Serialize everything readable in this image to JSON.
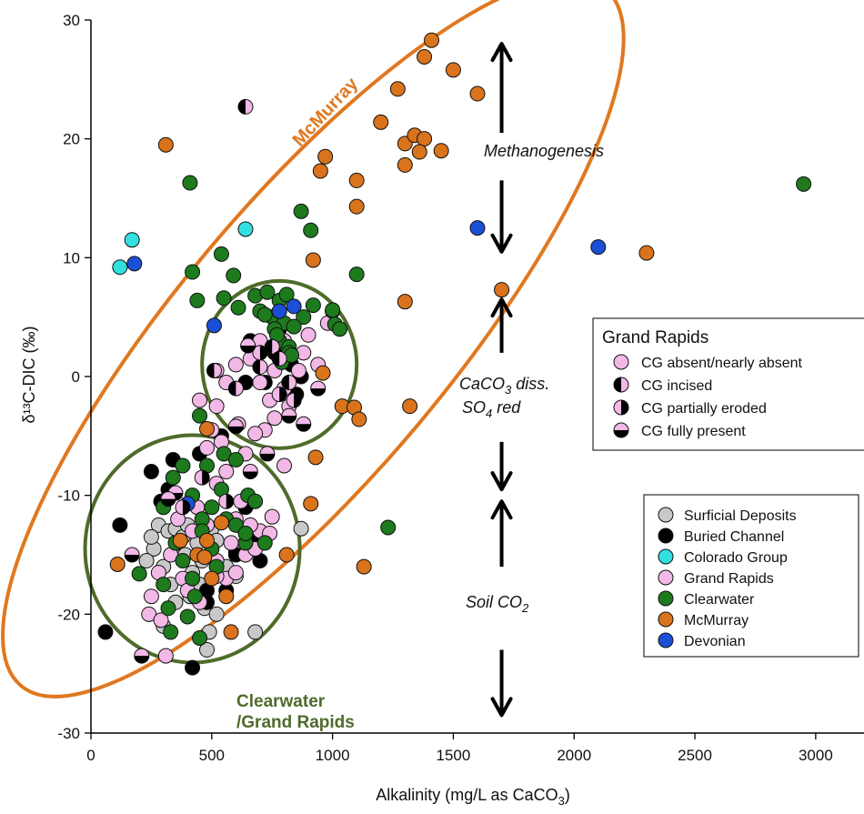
{
  "chart_data": {
    "type": "scatter",
    "xlabel": "Alkalinity  (mg/L as CaCO",
    "xlabel_sub": "3",
    "xlabel_end": ")",
    "ylabel": "δ¹³C-DIC (‰)",
    "xlim": [
      0,
      3200
    ],
    "ylim": [
      -30,
      30
    ],
    "xticks": [
      0,
      500,
      1000,
      1500,
      2000,
      2500,
      3000
    ],
    "yticks": [
      -30,
      -20,
      -10,
      0,
      10,
      20,
      30
    ],
    "grid": false,
    "colors": {
      "surficial": "#c8c8c8",
      "buried": "#000000",
      "colorado": "#33e0e0",
      "grandrapids": "#f2b8e6",
      "clearwater": "#1d7a1d",
      "mcmurray": "#d9731c",
      "devonian": "#1a4fd6",
      "mcmurray_ellipse": "#e07820",
      "clearwater_ellipse": "#4f6b2a"
    },
    "legend_grand_rapids": {
      "title": "Grand Rapids",
      "placement": "right",
      "entries": [
        {
          "label": "CG absent/nearly absent",
          "marker": "full"
        },
        {
          "label": "CG incised",
          "marker": "left-half"
        },
        {
          "label": "CG partially eroded",
          "marker": "right-half"
        },
        {
          "label": "CG fully present",
          "marker": "bottom-half"
        }
      ]
    },
    "legend_units": {
      "placement": "bottom-right",
      "entries": [
        {
          "label": "Surficial Deposits",
          "key": "surficial"
        },
        {
          "label": "Buried Channel",
          "key": "buried"
        },
        {
          "label": "Colorado Group",
          "key": "colorado"
        },
        {
          "label": "Grand Rapids",
          "key": "grandrapids"
        },
        {
          "label": "Clearwater",
          "key": "clearwater"
        },
        {
          "label": "McMurray",
          "key": "mcmurray"
        },
        {
          "label": "Devonian",
          "key": "devonian"
        }
      ]
    },
    "annotations": {
      "mcmurray_label": "McMurray",
      "clearwater_label_1": "Clearwater",
      "clearwater_label_2": "/Grand Rapids",
      "methanogenesis": "Methanogenesis",
      "caco3_line1_a": "CaCO",
      "caco3_line1_sub": "3",
      "caco3_line1_b": " diss.",
      "so4_a": "SO",
      "so4_sub": "4",
      "so4_b": " red",
      "soil_a": "Soil CO",
      "soil_sub": "2"
    },
    "series": [
      {
        "name": "Surficial Deposits",
        "key": "surficial",
        "marker": "full",
        "points": [
          [
            280,
            -12.5
          ],
          [
            320,
            -13
          ],
          [
            360,
            -14
          ],
          [
            390,
            -15
          ],
          [
            420,
            -16.5
          ],
          [
            350,
            -12.8
          ],
          [
            300,
            -16
          ],
          [
            260,
            -14.5
          ],
          [
            380,
            -13.5
          ],
          [
            440,
            -14
          ],
          [
            460,
            -15.5
          ],
          [
            500,
            -12.8
          ],
          [
            520,
            -13.8
          ],
          [
            560,
            -16
          ],
          [
            600,
            -14.8
          ],
          [
            230,
            -15.5
          ],
          [
            330,
            -17.5
          ],
          [
            410,
            -18.5
          ],
          [
            470,
            -19.5
          ],
          [
            490,
            -21.5
          ],
          [
            520,
            -20
          ],
          [
            480,
            -23
          ],
          [
            680,
            -21.5
          ],
          [
            300,
            -21
          ],
          [
            870,
            -12.8
          ],
          [
            600,
            -16.8
          ],
          [
            350,
            -19
          ],
          [
            400,
            -12.5
          ],
          [
            450,
            -17.5
          ],
          [
            250,
            -13.5
          ]
        ]
      },
      {
        "name": "Buried Channel",
        "key": "buried",
        "marker": "full",
        "points": [
          [
            60,
            -21.5
          ],
          [
            120,
            -12.5
          ],
          [
            290,
            -10.5
          ],
          [
            320,
            -9.5
          ],
          [
            420,
            -24.5
          ],
          [
            250,
            -8
          ],
          [
            340,
            -7
          ],
          [
            640,
            -11
          ],
          [
            680,
            -13.5
          ],
          [
            600,
            -15
          ],
          [
            480,
            -18
          ],
          [
            700,
            -15.5
          ],
          [
            660,
            3
          ],
          [
            760,
            2
          ],
          [
            850,
            -1.5
          ],
          [
            830,
            1
          ],
          [
            720,
            -0.5
          ],
          [
            780,
            4
          ],
          [
            870,
            0
          ],
          [
            640,
            -0.5
          ],
          [
            540,
            -5
          ],
          [
            450,
            -6.5
          ],
          [
            480,
            -19
          ],
          [
            560,
            -18
          ]
        ]
      },
      {
        "name": "Colorado Group",
        "key": "colorado",
        "marker": "full",
        "points": [
          [
            120,
            9.2
          ],
          [
            170,
            11.5
          ],
          [
            640,
            12.4
          ]
        ]
      },
      {
        "name": "Grand Rapids",
        "key": "grandrapids",
        "marker": "full",
        "points": [
          [
            310,
            -23.5
          ],
          [
            240,
            -20
          ],
          [
            290,
            -20.5
          ],
          [
            380,
            -17
          ],
          [
            420,
            -13
          ],
          [
            520,
            -15.5
          ],
          [
            560,
            -17
          ],
          [
            600,
            -16.5
          ],
          [
            640,
            -15
          ],
          [
            680,
            -14.5
          ],
          [
            700,
            -13
          ],
          [
            750,
            -11.8
          ],
          [
            800,
            -7.5
          ],
          [
            620,
            -10.5
          ],
          [
            560,
            -8
          ],
          [
            500,
            -4.5
          ],
          [
            450,
            -2
          ],
          [
            520,
            -2.5
          ],
          [
            560,
            -0.5
          ],
          [
            600,
            1
          ],
          [
            660,
            1.5
          ],
          [
            700,
            -0.5
          ],
          [
            740,
            -2
          ],
          [
            760,
            0.5
          ],
          [
            800,
            3
          ],
          [
            880,
            2
          ],
          [
            940,
            1
          ],
          [
            980,
            4.5
          ],
          [
            1000,
            5.5
          ],
          [
            900,
            3.5
          ],
          [
            860,
            0.5
          ],
          [
            800,
            -1
          ],
          [
            720,
            -4.5
          ],
          [
            680,
            -4.8
          ],
          [
            610,
            -4
          ],
          [
            640,
            -6.5
          ],
          [
            540,
            -5.5
          ],
          [
            480,
            -6
          ],
          [
            520,
            -9
          ],
          [
            440,
            -11
          ],
          [
            360,
            -12
          ],
          [
            330,
            -15
          ],
          [
            280,
            -16.5
          ],
          [
            250,
            -18.5
          ],
          [
            400,
            -18
          ],
          [
            450,
            -19
          ],
          [
            520,
            -16.8
          ],
          [
            580,
            -14
          ],
          [
            480,
            -12.5
          ],
          [
            600,
            -12
          ],
          [
            660,
            -12.5
          ],
          [
            740,
            -13.2
          ],
          [
            520,
            0.5
          ],
          [
            700,
            3
          ],
          [
            760,
            -3.5
          ],
          [
            820,
            -2.5
          ]
        ]
      },
      {
        "name": "Clearwater",
        "key": "clearwater",
        "marker": "full",
        "points": [
          [
            410,
            16.3
          ],
          [
            540,
            10.3
          ],
          [
            590,
            8.5
          ],
          [
            420,
            8.8
          ],
          [
            440,
            6.4
          ],
          [
            550,
            6.6
          ],
          [
            610,
            5.8
          ],
          [
            680,
            6.8
          ],
          [
            730,
            7.1
          ],
          [
            780,
            6.4
          ],
          [
            810,
            6.9
          ],
          [
            700,
            5.5
          ],
          [
            750,
            5
          ],
          [
            800,
            4.5
          ],
          [
            780,
            3
          ],
          [
            820,
            2.5
          ],
          [
            760,
            4
          ],
          [
            870,
            13.9
          ],
          [
            910,
            12.3
          ],
          [
            1100,
            8.6
          ],
          [
            1000,
            5.6
          ],
          [
            1010,
            4.4
          ],
          [
            1030,
            4
          ],
          [
            820,
            2
          ],
          [
            770,
            3.5
          ],
          [
            790,
            1.2
          ],
          [
            830,
            1.8
          ],
          [
            720,
            5.2
          ],
          [
            920,
            6
          ],
          [
            880,
            5
          ],
          [
            840,
            4.2
          ],
          [
            450,
            -3.3
          ],
          [
            480,
            -7.5
          ],
          [
            550,
            -6.5
          ],
          [
            600,
            -7
          ],
          [
            650,
            -10
          ],
          [
            680,
            -10.5
          ],
          [
            720,
            -14
          ],
          [
            540,
            -9.5
          ],
          [
            500,
            -11
          ],
          [
            460,
            -12
          ],
          [
            420,
            -10
          ],
          [
            380,
            -7.5
          ],
          [
            340,
            -8.5
          ],
          [
            300,
            -11
          ],
          [
            350,
            -14
          ],
          [
            380,
            -15.5
          ],
          [
            420,
            -17
          ],
          [
            460,
            -13
          ],
          [
            500,
            -14.5
          ],
          [
            560,
            -12
          ],
          [
            600,
            -12.5
          ],
          [
            640,
            -14
          ],
          [
            300,
            -17.5
          ],
          [
            320,
            -19.5
          ],
          [
            330,
            -21.5
          ],
          [
            400,
            -20.2
          ],
          [
            450,
            -22
          ],
          [
            200,
            -16.6
          ],
          [
            520,
            -16
          ],
          [
            640,
            -13.2
          ],
          [
            1230,
            -12.7
          ],
          [
            2950,
            16.2
          ],
          [
            430,
            -18.5
          ]
        ]
      },
      {
        "name": "McMurray",
        "key": "mcmurray",
        "marker": "full",
        "points": [
          [
            310,
            19.5
          ],
          [
            1410,
            28.3
          ],
          [
            1380,
            26.9
          ],
          [
            1500,
            25.8
          ],
          [
            1600,
            23.8
          ],
          [
            1270,
            24.2
          ],
          [
            1200,
            21.4
          ],
          [
            1300,
            19.6
          ],
          [
            1340,
            20.3
          ],
          [
            1380,
            20
          ],
          [
            1360,
            18.9
          ],
          [
            1450,
            19
          ],
          [
            1300,
            17.8
          ],
          [
            1100,
            16.5
          ],
          [
            970,
            18.5
          ],
          [
            950,
            17.3
          ],
          [
            1100,
            14.3
          ],
          [
            920,
            9.8
          ],
          [
            1300,
            6.3
          ],
          [
            1700,
            7.3
          ],
          [
            2300,
            10.4
          ],
          [
            960,
            0.3
          ],
          [
            1040,
            -2.5
          ],
          [
            1090,
            -2.6
          ],
          [
            1110,
            -3.6
          ],
          [
            1320,
            -2.5
          ],
          [
            930,
            -6.8
          ],
          [
            910,
            -10.7
          ],
          [
            810,
            -15
          ],
          [
            1130,
            -16
          ],
          [
            110,
            -15.8
          ],
          [
            480,
            -4.4
          ],
          [
            500,
            -17
          ],
          [
            440,
            -15
          ],
          [
            470,
            -15.2
          ],
          [
            580,
            -21.5
          ],
          [
            560,
            -18.5
          ],
          [
            480,
            -13.8
          ],
          [
            540,
            -12.3
          ],
          [
            370,
            -13.8
          ]
        ]
      },
      {
        "name": "Devonian",
        "key": "devonian",
        "marker": "full",
        "points": [
          [
            180,
            9.5
          ],
          [
            1600,
            12.5
          ],
          [
            2100,
            10.9
          ],
          [
            510,
            4.3
          ],
          [
            780,
            5.5
          ],
          [
            840,
            5.9
          ],
          [
            400,
            -10.7
          ]
        ]
      },
      {
        "name": "CG incised",
        "key": "grandrapids",
        "marker": "left-half",
        "points": [
          [
            640,
            22.7
          ],
          [
            510,
            0.5
          ],
          [
            750,
            2.5
          ],
          [
            820,
            -0.5
          ],
          [
            780,
            1.5
          ],
          [
            700,
            0.8
          ],
          [
            600,
            -1
          ]
        ]
      },
      {
        "name": "CG partially eroded",
        "key": "grandrapids",
        "marker": "right-half",
        "points": [
          [
            780,
            -1.5
          ],
          [
            840,
            -2
          ],
          [
            700,
            2
          ],
          [
            380,
            -11
          ],
          [
            560,
            -10.5
          ],
          [
            460,
            -8.5
          ]
        ]
      },
      {
        "name": "CG fully present",
        "key": "grandrapids",
        "marker": "bottom-half",
        "points": [
          [
            210,
            -23.5
          ],
          [
            170,
            -15
          ],
          [
            350,
            -9.8
          ],
          [
            320,
            -10.3
          ],
          [
            600,
            -4.2
          ],
          [
            660,
            -8
          ],
          [
            730,
            -6.5
          ],
          [
            880,
            -4
          ],
          [
            940,
            -1
          ],
          [
            820,
            -3.3
          ],
          [
            650,
            2.6
          ]
        ]
      }
    ]
  }
}
